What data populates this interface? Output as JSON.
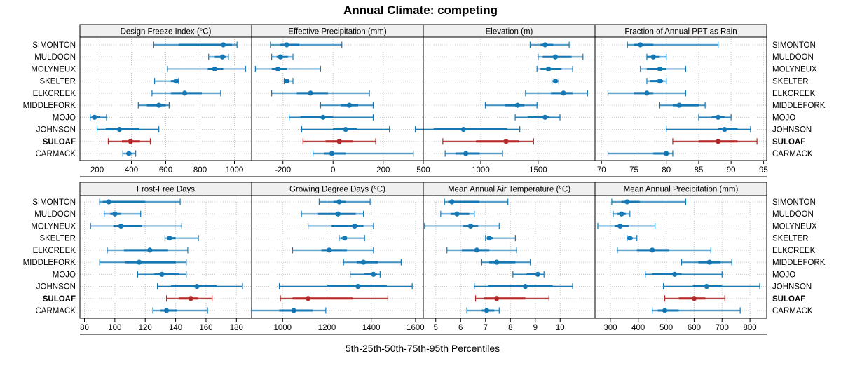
{
  "chart_data": {
    "type": "dotplot-percentile",
    "title": "Annual Climate: competing",
    "xlabel": "5th-25th-50th-75th-95th Percentiles",
    "ylabel": "",
    "legend": "none",
    "grid": true,
    "colors": {
      "default": "#1577b3",
      "highlight": "#b42a2a",
      "grid": "#c8c8c8",
      "strip": "#f0f0f0"
    },
    "highlight_site": "SULOAF",
    "sites": [
      "SIMONTON",
      "MULDOON",
      "MOLYNEUX",
      "SKELTER",
      "ELKCREEK",
      "MIDDLEFORK",
      "MOJO",
      "JOHNSON",
      "SULOAF",
      "CARMACK"
    ],
    "percentile_keys": [
      "p5",
      "p25",
      "p50",
      "p75",
      "p95"
    ],
    "panels": [
      {
        "title": "Design Freeze Index (°C)",
        "xlim": [
          100,
          1100
        ],
        "ticks": [
          200,
          400,
          600,
          800,
          1000
        ],
        "values": [
          [
            530,
            675,
            935,
            985,
            1015
          ],
          [
            850,
            885,
            930,
            950,
            965
          ],
          [
            610,
            845,
            885,
            935,
            1065
          ],
          [
            535,
            630,
            660,
            670,
            675
          ],
          [
            520,
            630,
            710,
            810,
            920
          ],
          [
            440,
            490,
            560,
            600,
            620
          ],
          [
            160,
            170,
            185,
            215,
            255
          ],
          [
            200,
            250,
            330,
            445,
            560
          ],
          [
            265,
            345,
            395,
            450,
            510
          ],
          [
            350,
            370,
            385,
            405,
            425
          ]
        ]
      },
      {
        "title": "Effective Precipitation (mm)",
        "xlim": [
          -325,
          360
        ],
        "ticks": [
          -200,
          0,
          200
        ],
        "values": [
          [
            -250,
            -210,
            -185,
            -135,
            35
          ],
          [
            -245,
            -225,
            -210,
            -180,
            -160
          ],
          [
            -310,
            -245,
            -220,
            -185,
            -50
          ],
          [
            -195,
            -190,
            -185,
            -180,
            -160
          ],
          [
            -245,
            -145,
            -90,
            -20,
            145
          ],
          [
            -50,
            30,
            65,
            100,
            160
          ],
          [
            -175,
            -130,
            -40,
            0,
            160
          ],
          [
            -125,
            0,
            50,
            95,
            225
          ],
          [
            -120,
            -30,
            25,
            80,
            170
          ],
          [
            -80,
            -35,
            -5,
            50,
            320
          ]
        ]
      },
      {
        "title": "Elevation (m)",
        "xlim": [
          500,
          1995
        ],
        "ticks": [
          500,
          1000,
          1500
        ],
        "values": [
          [
            1430,
            1520,
            1560,
            1630,
            1770
          ],
          [
            1500,
            1540,
            1650,
            1790,
            1890
          ],
          [
            1490,
            1520,
            1590,
            1700,
            1800
          ],
          [
            1620,
            1635,
            1650,
            1660,
            1680
          ],
          [
            1390,
            1610,
            1720,
            1800,
            1930
          ],
          [
            1040,
            1210,
            1320,
            1380,
            1490
          ],
          [
            1300,
            1410,
            1560,
            1600,
            1690
          ],
          [
            430,
            590,
            850,
            1230,
            1340
          ],
          [
            670,
            960,
            1220,
            1330,
            1460
          ],
          [
            690,
            780,
            870,
            990,
            1190
          ]
        ]
      },
      {
        "title": "Fraction of Annual PPT as Rain",
        "xlim": [
          69,
          95.5
        ],
        "ticks": [
          70,
          75,
          80,
          85,
          90,
          95
        ],
        "values": [
          [
            74,
            75,
            76,
            78,
            88
          ],
          [
            77,
            77,
            78,
            79,
            80
          ],
          [
            76,
            77,
            79,
            80,
            83
          ],
          [
            77,
            77.5,
            79,
            79.5,
            80
          ],
          [
            71,
            75,
            77,
            78,
            83
          ],
          [
            79,
            81,
            82,
            85,
            86
          ],
          [
            85,
            87,
            88,
            89,
            90
          ],
          [
            80,
            88,
            89,
            91,
            93
          ],
          [
            81,
            85,
            88,
            91,
            94
          ],
          [
            71,
            78,
            80,
            80.5,
            81
          ]
        ]
      },
      {
        "title": "Frost-Free Days",
        "xlim": [
          77,
          190
        ],
        "ticks": [
          80,
          100,
          120,
          140,
          160,
          180
        ],
        "values": [
          [
            90,
            92,
            96,
            120,
            143
          ],
          [
            93,
            97,
            100,
            104,
            117
          ],
          [
            84,
            99,
            104,
            118,
            144
          ],
          [
            133,
            135,
            136,
            140,
            155
          ],
          [
            95,
            106,
            123,
            135,
            148
          ],
          [
            90,
            107,
            116,
            140,
            147
          ],
          [
            115,
            126,
            131,
            142,
            147
          ],
          [
            128,
            137,
            154,
            167,
            184
          ],
          [
            134,
            142,
            150,
            155,
            164
          ],
          [
            125,
            130,
            134,
            141,
            161
          ]
        ]
      },
      {
        "title": "Growing Degree Days (°C)",
        "xlim": [
          860,
          1635
        ],
        "ticks": [
          1000,
          1200,
          1400,
          1600
        ],
        "values": [
          [
            1165,
            1230,
            1255,
            1285,
            1395
          ],
          [
            1085,
            1160,
            1250,
            1330,
            1365
          ],
          [
            1115,
            1220,
            1325,
            1365,
            1410
          ],
          [
            1255,
            1265,
            1280,
            1290,
            1370
          ],
          [
            1045,
            1175,
            1210,
            1290,
            1410
          ],
          [
            1275,
            1335,
            1365,
            1430,
            1535
          ],
          [
            1305,
            1370,
            1410,
            1425,
            1440
          ],
          [
            985,
            1200,
            1340,
            1470,
            1585
          ],
          [
            990,
            1045,
            1115,
            1315,
            1475
          ],
          [
            860,
            985,
            1050,
            1135,
            1195
          ]
        ]
      },
      {
        "title": "Mean Annual Air Temperature (°C)",
        "xlim": [
          4.5,
          11.4
        ],
        "ticks": [
          5,
          6,
          7,
          8,
          9,
          10
        ],
        "values": [
          [
            5.35,
            5.5,
            5.65,
            6.75,
            7.9
          ],
          [
            5.2,
            5.6,
            5.85,
            6.35,
            6.55
          ],
          [
            4.55,
            6.1,
            6.4,
            6.7,
            7.55
          ],
          [
            7.0,
            7.1,
            7.15,
            7.3,
            8.2
          ],
          [
            5.45,
            6.05,
            6.65,
            7.15,
            8.25
          ],
          [
            6.85,
            7.15,
            7.45,
            8.2,
            8.8
          ],
          [
            8.1,
            8.65,
            9.1,
            9.2,
            9.35
          ],
          [
            6.55,
            7.1,
            8.6,
            9.7,
            10.5
          ],
          [
            6.6,
            6.95,
            7.45,
            8.6,
            9.55
          ],
          [
            6.25,
            6.85,
            7.05,
            7.35,
            7.55
          ]
        ]
      },
      {
        "title": "Mean Annual Precipitation (mm)",
        "xlim": [
          245,
          860
        ],
        "ticks": [
          300,
          400,
          500,
          600,
          700,
          800
        ],
        "values": [
          [
            305,
            340,
            360,
            405,
            570
          ],
          [
            310,
            325,
            340,
            355,
            370
          ],
          [
            255,
            315,
            335,
            365,
            460
          ],
          [
            360,
            365,
            370,
            380,
            395
          ],
          [
            325,
            395,
            450,
            510,
            660
          ],
          [
            555,
            615,
            655,
            695,
            735
          ],
          [
            425,
            450,
            530,
            555,
            700
          ],
          [
            490,
            595,
            645,
            700,
            835
          ],
          [
            495,
            545,
            600,
            640,
            710
          ],
          [
            450,
            470,
            495,
            545,
            765
          ]
        ]
      }
    ]
  }
}
